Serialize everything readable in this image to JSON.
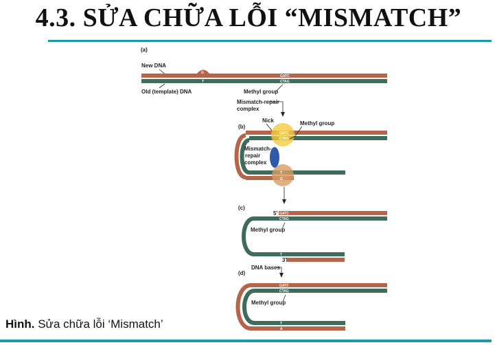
{
  "title": "4.3. SỬA CHỮA LỖI “MISMATCH”",
  "caption": {
    "bold": "Hình.",
    "text": " Sửa chữa lỗi ‘Mismatch’"
  },
  "figure": {
    "panel_a": "(a)",
    "panel_b": "(b)",
    "panel_c": "(c)",
    "panel_d": "(d)",
    "new_dna": "New DNA",
    "old_dna": "Old (template) DNA",
    "methyl_group": "Methyl group",
    "mismatch_repair_complex_1": "Mismatch-repair",
    "mismatch_repair_complex_2": "complex",
    "nick": "Nick",
    "methyl_group_b": "Methyl group",
    "mrc_b_1": "Mismatch-",
    "mrc_b_2": "repair",
    "mrc_b_3": "complex",
    "methyl_group_c": "Methyl group",
    "dna_bases": "DNA bases",
    "methyl_group_d": "Methyl group",
    "gatc": "GATC",
    "ctag": "CTAG",
    "base_g": "G",
    "base_t": "T",
    "base_a": "A",
    "five_prime": "5'",
    "three_prime": "3'"
  },
  "colors": {
    "new_strand": "#b5654a",
    "old_strand": "#3e6b5a",
    "accent": "#1a9aa6"
  }
}
